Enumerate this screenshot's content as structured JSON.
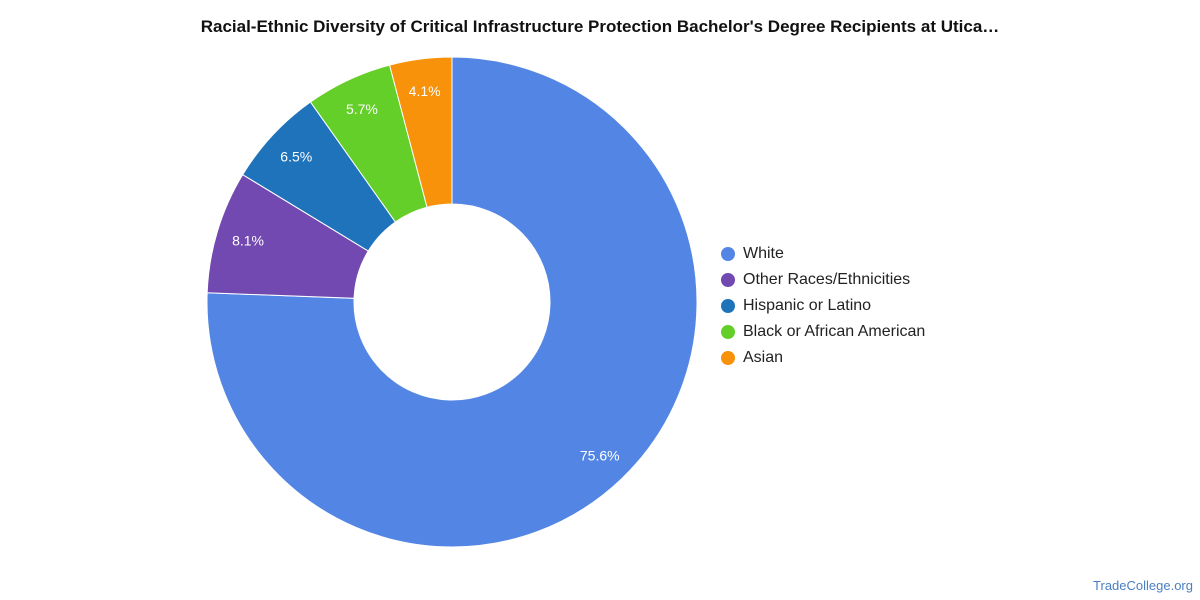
{
  "title": "Racial-Ethnic Diversity of Critical Infrastructure Protection Bachelor's Degree Recipients at Utica…",
  "watermark": "TradeCollege.org",
  "chart_data": {
    "type": "pie",
    "subtype": "donut",
    "title": "Racial-Ethnic Diversity of Critical Infrastructure Protection Bachelor's Degree Recipients at Utica…",
    "legend_position": "right",
    "slices": [
      {
        "name": "White",
        "value": 75.6,
        "label": "75.6%",
        "color": "#5386E4"
      },
      {
        "name": "Other Races/Ethnicities",
        "value": 8.1,
        "label": "8.1%",
        "color": "#7248B1"
      },
      {
        "name": "Hispanic or Latino",
        "value": 6.5,
        "label": "6.5%",
        "color": "#1F73BA"
      },
      {
        "name": "Black or African American",
        "value": 5.7,
        "label": "5.7%",
        "color": "#63CF28"
      },
      {
        "name": "Asian",
        "value": 4.1,
        "label": "4.1%",
        "color": "#F7920A"
      }
    ]
  }
}
